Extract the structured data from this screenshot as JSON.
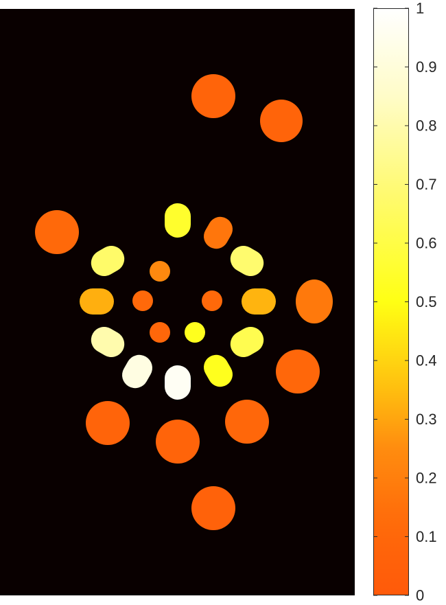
{
  "chart_data": {
    "type": "heatmap",
    "title": "",
    "xlabel": "",
    "ylabel": "",
    "colormap": "hot",
    "background_color": "#090000",
    "colorbar": {
      "range": [
        0,
        1
      ],
      "ticks": [
        {
          "value": 0,
          "label": "0"
        },
        {
          "value": 0.1,
          "label": "0.1"
        },
        {
          "value": 0.2,
          "label": "0.2"
        },
        {
          "value": 0.3,
          "label": "0.3"
        },
        {
          "value": 0.4,
          "label": "0.4"
        },
        {
          "value": 0.5,
          "label": "0.5"
        },
        {
          "value": 0.6,
          "label": "0.6"
        },
        {
          "value": 0.7,
          "label": "0.7"
        },
        {
          "value": 0.8,
          "label": "0.8"
        },
        {
          "value": 0.9,
          "label": "0.9"
        },
        {
          "value": 1,
          "label": "1"
        }
      ]
    },
    "blobs": [
      {
        "shape": "circle",
        "value": 0.08
      },
      {
        "shape": "circle",
        "value": 0.08
      },
      {
        "shape": "circle",
        "value": 0.12
      },
      {
        "shape": "circle",
        "value": 0.18
      },
      {
        "shape": "circle",
        "value": 0.1
      },
      {
        "shape": "circle",
        "value": 0.08
      },
      {
        "shape": "circle",
        "value": 0.1
      },
      {
        "shape": "circle",
        "value": 0.08
      },
      {
        "shape": "circle",
        "value": 0.06
      },
      {
        "shape": "pill",
        "value": 0.55
      },
      {
        "shape": "pill",
        "value": 0.17
      },
      {
        "shape": "pill",
        "value": 0.67
      },
      {
        "shape": "pill",
        "value": 0.68
      },
      {
        "shape": "pill",
        "value": 0.32
      },
      {
        "shape": "pill",
        "value": 0.33
      },
      {
        "shape": "pill",
        "value": 0.8
      },
      {
        "shape": "pill",
        "value": 0.62
      },
      {
        "shape": "pill",
        "value": 0.52
      },
      {
        "shape": "pill",
        "value": 0.92
      },
      {
        "shape": "pill",
        "value": 0.97
      },
      {
        "shape": "dot",
        "value": 0.24
      },
      {
        "shape": "dot",
        "value": 0.12
      },
      {
        "shape": "dot",
        "value": 0.12
      },
      {
        "shape": "dot",
        "value": 0.1
      },
      {
        "shape": "dot",
        "value": 0.52
      }
    ]
  }
}
